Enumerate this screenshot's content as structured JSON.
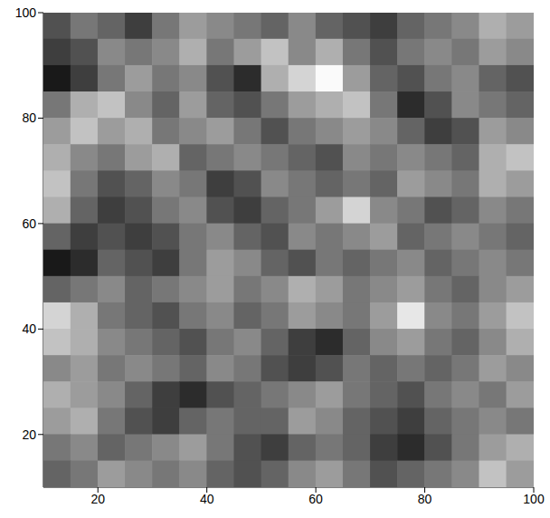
{
  "chart_data": {
    "type": "heatmap",
    "xlim": [
      10,
      100
    ],
    "xticks": [
      20,
      40,
      60,
      80,
      100
    ],
    "ylim": [
      10,
      100
    ],
    "yticks": [
      20,
      40,
      60,
      80,
      100
    ],
    "grid": false,
    "x": [
      12.5,
      17.5,
      22.5,
      27.5,
      32.5,
      37.5,
      42.5,
      47.5,
      52.5,
      57.5,
      62.5,
      67.5,
      72.5,
      77.5,
      82.5,
      87.5,
      92.5,
      97.5
    ],
    "y": [
      97.5,
      92.5,
      87.5,
      82.5,
      77.5,
      72.5,
      67.5,
      62.5,
      57.5,
      52.5,
      47.5,
      42.5,
      37.5,
      32.5,
      27.5,
      22.5,
      17.5,
      12.5
    ],
    "z": [
      [
        0.35,
        0.45,
        0.4,
        0.3,
        0.45,
        0.55,
        0.5,
        0.45,
        0.4,
        0.5,
        0.4,
        0.35,
        0.3,
        0.4,
        0.45,
        0.5,
        0.6,
        0.55
      ],
      [
        0.3,
        0.35,
        0.5,
        0.45,
        0.5,
        0.6,
        0.45,
        0.55,
        0.65,
        0.5,
        0.6,
        0.45,
        0.35,
        0.45,
        0.5,
        0.45,
        0.55,
        0.5
      ],
      [
        0.2,
        0.3,
        0.45,
        0.55,
        0.45,
        0.5,
        0.35,
        0.25,
        0.6,
        0.7,
        0.8,
        0.55,
        0.4,
        0.35,
        0.45,
        0.5,
        0.4,
        0.35
      ],
      [
        0.45,
        0.6,
        0.65,
        0.5,
        0.4,
        0.55,
        0.4,
        0.35,
        0.45,
        0.55,
        0.6,
        0.65,
        0.45,
        0.25,
        0.35,
        0.5,
        0.45,
        0.4
      ],
      [
        0.55,
        0.65,
        0.55,
        0.6,
        0.45,
        0.5,
        0.55,
        0.45,
        0.35,
        0.45,
        0.5,
        0.55,
        0.5,
        0.4,
        0.3,
        0.35,
        0.55,
        0.5
      ],
      [
        0.6,
        0.5,
        0.45,
        0.55,
        0.6,
        0.4,
        0.45,
        0.5,
        0.45,
        0.4,
        0.35,
        0.5,
        0.45,
        0.5,
        0.45,
        0.4,
        0.6,
        0.65
      ],
      [
        0.65,
        0.45,
        0.35,
        0.4,
        0.5,
        0.45,
        0.3,
        0.35,
        0.5,
        0.45,
        0.4,
        0.45,
        0.4,
        0.55,
        0.5,
        0.45,
        0.6,
        0.55
      ],
      [
        0.6,
        0.4,
        0.3,
        0.35,
        0.45,
        0.5,
        0.35,
        0.3,
        0.4,
        0.45,
        0.55,
        0.7,
        0.5,
        0.45,
        0.35,
        0.4,
        0.5,
        0.45
      ],
      [
        0.4,
        0.3,
        0.35,
        0.3,
        0.35,
        0.45,
        0.5,
        0.4,
        0.35,
        0.5,
        0.45,
        0.5,
        0.55,
        0.4,
        0.45,
        0.5,
        0.45,
        0.4
      ],
      [
        0.2,
        0.25,
        0.4,
        0.35,
        0.3,
        0.45,
        0.55,
        0.5,
        0.4,
        0.35,
        0.45,
        0.4,
        0.45,
        0.5,
        0.4,
        0.45,
        0.5,
        0.45
      ],
      [
        0.4,
        0.45,
        0.5,
        0.4,
        0.45,
        0.5,
        0.55,
        0.45,
        0.5,
        0.6,
        0.55,
        0.45,
        0.5,
        0.55,
        0.45,
        0.4,
        0.5,
        0.55
      ],
      [
        0.7,
        0.6,
        0.45,
        0.4,
        0.35,
        0.45,
        0.5,
        0.4,
        0.45,
        0.55,
        0.5,
        0.45,
        0.55,
        0.75,
        0.5,
        0.45,
        0.55,
        0.65
      ],
      [
        0.65,
        0.6,
        0.5,
        0.45,
        0.4,
        0.35,
        0.45,
        0.5,
        0.4,
        0.3,
        0.25,
        0.4,
        0.5,
        0.55,
        0.45,
        0.4,
        0.5,
        0.6
      ],
      [
        0.5,
        0.55,
        0.45,
        0.5,
        0.45,
        0.4,
        0.5,
        0.45,
        0.35,
        0.3,
        0.35,
        0.45,
        0.4,
        0.45,
        0.4,
        0.45,
        0.55,
        0.5
      ],
      [
        0.6,
        0.55,
        0.5,
        0.4,
        0.3,
        0.25,
        0.35,
        0.4,
        0.45,
        0.5,
        0.55,
        0.45,
        0.4,
        0.35,
        0.45,
        0.5,
        0.45,
        0.55
      ],
      [
        0.55,
        0.6,
        0.45,
        0.35,
        0.3,
        0.4,
        0.45,
        0.4,
        0.4,
        0.55,
        0.5,
        0.4,
        0.35,
        0.3,
        0.4,
        0.45,
        0.5,
        0.45
      ],
      [
        0.45,
        0.5,
        0.4,
        0.45,
        0.5,
        0.55,
        0.45,
        0.35,
        0.3,
        0.4,
        0.45,
        0.4,
        0.3,
        0.25,
        0.35,
        0.45,
        0.55,
        0.6
      ],
      [
        0.4,
        0.45,
        0.55,
        0.5,
        0.45,
        0.5,
        0.4,
        0.35,
        0.4,
        0.5,
        0.55,
        0.45,
        0.35,
        0.4,
        0.45,
        0.5,
        0.65,
        0.55
      ]
    ]
  }
}
